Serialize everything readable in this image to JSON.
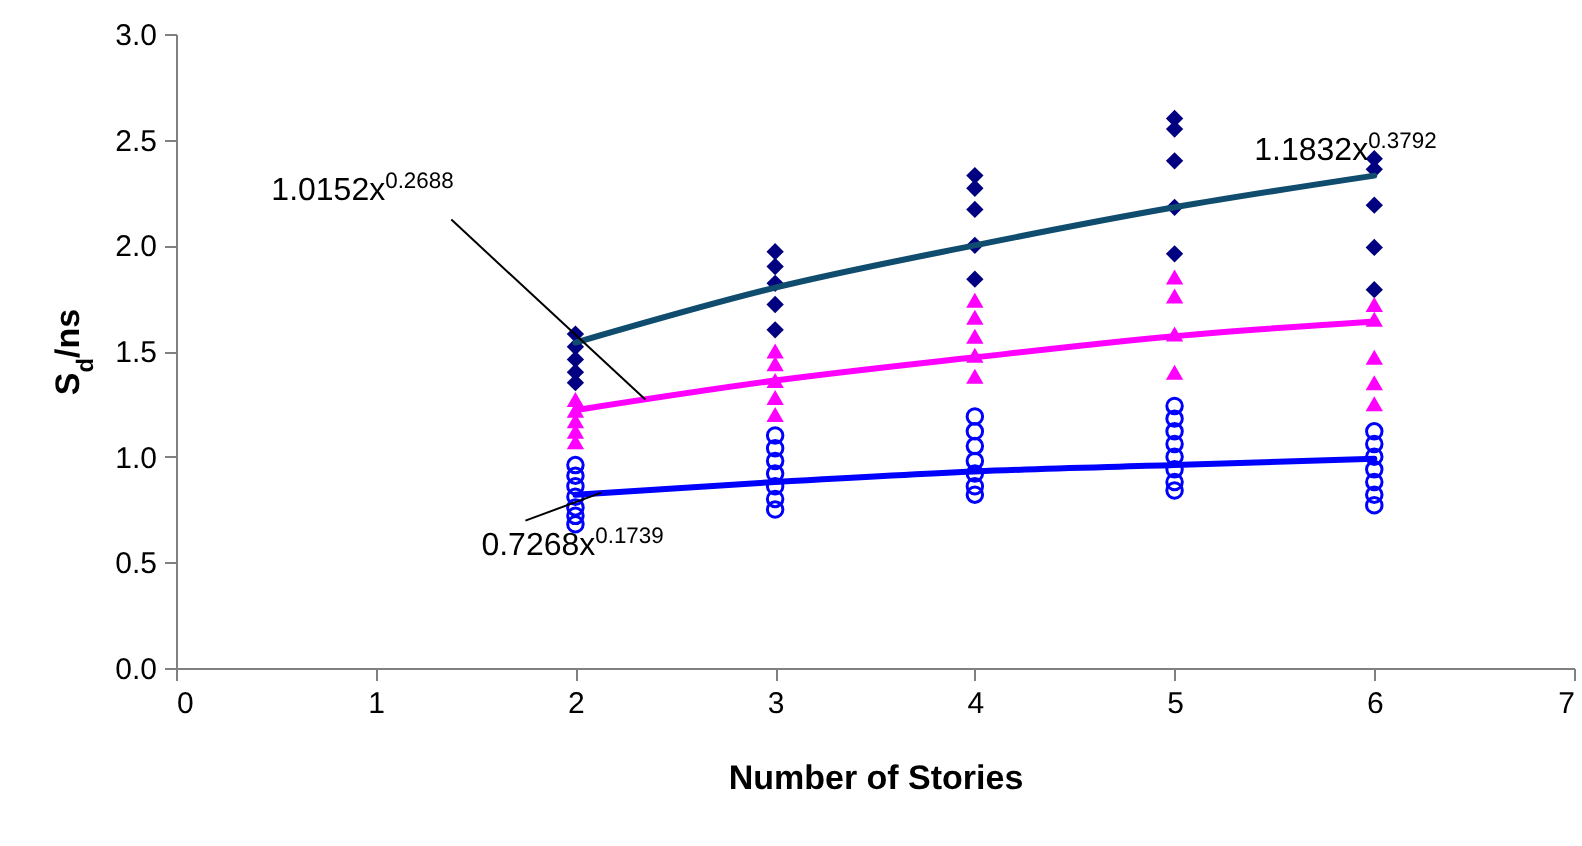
{
  "chart_data": {
    "type": "scatter",
    "xlabel": "Number of Stories",
    "ylabel": "S$_{d}$/ns",
    "xlim": [
      0,
      7
    ],
    "xticks": [
      0,
      1,
      2,
      3,
      4,
      5,
      6,
      7
    ],
    "ylim": [
      0,
      3
    ],
    "yticks": [
      {
        "value": 0,
        "label": "0.0"
      },
      {
        "value": 0.5,
        "label": "0.5"
      },
      {
        "value": 1,
        "label": "1.0"
      },
      {
        "value": 1.5,
        "label": "1.5"
      },
      {
        "value": 2,
        "label": "2.0"
      },
      {
        "value": 2.5,
        "label": "2.5"
      },
      {
        "value": 3,
        "label": "3.0"
      }
    ],
    "grid": false,
    "series": [
      {
        "marker": "diamond",
        "color": "#000080",
        "x": [
          2,
          2,
          2,
          2,
          2,
          3,
          3,
          3,
          3,
          3,
          4,
          4,
          4,
          4,
          4,
          5,
          5,
          5,
          5,
          5,
          6,
          6,
          6,
          6,
          6
        ],
        "values": [
          1.58,
          1.52,
          1.46,
          1.4,
          1.35,
          1.97,
          1.9,
          1.82,
          1.72,
          1.6,
          2.33,
          2.27,
          2.17,
          2.0,
          1.84,
          2.6,
          2.55,
          2.4,
          2.18,
          1.96,
          2.41,
          2.36,
          2.19,
          1.99,
          1.79
        ]
      },
      {
        "marker": "triangle",
        "color": "#ff00ff",
        "x": [
          2,
          2,
          2,
          2,
          2,
          3,
          3,
          3,
          3,
          3,
          4,
          4,
          4,
          4,
          4,
          5,
          5,
          5,
          5,
          6,
          6,
          6,
          6,
          6
        ],
        "values": [
          1.27,
          1.22,
          1.17,
          1.12,
          1.07,
          1.5,
          1.44,
          1.36,
          1.28,
          1.2,
          1.74,
          1.66,
          1.57,
          1.48,
          1.38,
          1.85,
          1.76,
          1.58,
          1.4,
          1.72,
          1.65,
          1.47,
          1.35,
          1.25
        ]
      },
      {
        "marker": "circle",
        "color": "#0000ff",
        "x": [
          2,
          2,
          2,
          2,
          2,
          2,
          2,
          3,
          3,
          3,
          3,
          3,
          3,
          3,
          4,
          4,
          4,
          4,
          4,
          4,
          4,
          5,
          5,
          5,
          5,
          5,
          5,
          5,
          5,
          6,
          6,
          6,
          6,
          6,
          6,
          6
        ],
        "values": [
          0.96,
          0.91,
          0.86,
          0.81,
          0.76,
          0.72,
          0.68,
          1.1,
          1.04,
          0.98,
          0.92,
          0.86,
          0.8,
          0.75,
          1.19,
          1.12,
          1.05,
          0.98,
          0.92,
          0.86,
          0.82,
          1.24,
          1.18,
          1.12,
          1.06,
          1.0,
          0.94,
          0.88,
          0.84,
          1.12,
          1.06,
          1.0,
          0.94,
          0.88,
          0.82,
          0.77
        ]
      },
      {
        "type": "line",
        "line_style": "solid",
        "color": "#0f4c6e",
        "x": [
          2,
          3,
          4,
          5,
          6
        ],
        "values": [
          1.54,
          1.8,
          2.0,
          2.18,
          2.33
        ]
      },
      {
        "type": "line",
        "line_style": "solid",
        "color": "#ff00ff",
        "x": [
          2,
          3,
          4,
          5,
          6
        ],
        "values": [
          1.22,
          1.36,
          1.47,
          1.57,
          1.64
        ]
      },
      {
        "type": "line",
        "line_style": "solid",
        "color": "#0000ff",
        "x": [
          2,
          3,
          4,
          5,
          6
        ],
        "values": [
          0.82,
          0.88,
          0.93,
          0.96,
          0.99
        ]
      }
    ],
    "annotations": [
      {
        "text": "1.0152x$^{0.2688}$",
        "x": 2.35,
        "y": 1.27
      },
      {
        "text": "0.7268x$^{0.1739}$",
        "x": 2.13,
        "y": 0.83
      },
      {
        "text": "1.1832x$^{0.3792}$",
        "x": 6,
        "y": 2.33
      }
    ]
  }
}
